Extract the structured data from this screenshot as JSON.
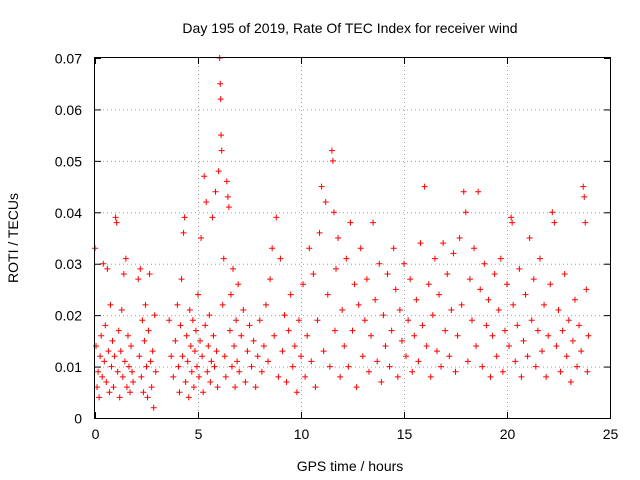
{
  "chart_data": {
    "type": "scatter",
    "title": "Day 195 of 2019, Rate Of TEC Index for receiver wind",
    "xlabel": "GPS time / hours",
    "ylabel": "ROTI / TECUs",
    "xlim": [
      0,
      25
    ],
    "ylim": [
      0,
      0.07
    ],
    "x_ticks": [
      0,
      5,
      10,
      15,
      20,
      25
    ],
    "x_tick_labels": [
      "0",
      "5",
      "10",
      "15",
      "20",
      "25"
    ],
    "y_ticks": [
      0,
      0.01,
      0.02,
      0.03,
      0.04,
      0.05,
      0.06,
      0.07
    ],
    "y_tick_labels": [
      "0",
      "0.01",
      "0.02",
      "0.03",
      "0.04",
      "0.05",
      "0.06",
      "0.07"
    ],
    "grid": true,
    "marker": "plus",
    "series": [
      {
        "name": "ROTI",
        "color": "#ff0000",
        "points": [
          [
            0.0,
            0.033
          ],
          [
            0.05,
            0.014
          ],
          [
            0.1,
            0.006
          ],
          [
            0.15,
            0.009
          ],
          [
            0.2,
            0.004
          ],
          [
            0.25,
            0.012
          ],
          [
            0.3,
            0.016
          ],
          [
            0.35,
            0.008
          ],
          [
            0.4,
            0.03
          ],
          [
            0.45,
            0.011
          ],
          [
            0.5,
            0.018
          ],
          [
            0.55,
            0.007
          ],
          [
            0.6,
            0.029
          ],
          [
            0.65,
            0.013
          ],
          [
            0.7,
            0.005
          ],
          [
            0.75,
            0.022
          ],
          [
            0.8,
            0.01
          ],
          [
            0.85,
            0.015
          ],
          [
            0.9,
            0.006
          ],
          [
            0.95,
            0.012
          ],
          [
            1.0,
            0.039
          ],
          [
            1.05,
            0.038
          ],
          [
            1.1,
            0.009
          ],
          [
            1.15,
            0.017
          ],
          [
            1.2,
            0.004
          ],
          [
            1.25,
            0.013
          ],
          [
            1.3,
            0.021
          ],
          [
            1.35,
            0.008
          ],
          [
            1.4,
            0.028
          ],
          [
            1.45,
            0.011
          ],
          [
            1.5,
            0.031
          ],
          [
            1.55,
            0.006
          ],
          [
            1.6,
            0.016
          ],
          [
            1.65,
            0.01
          ],
          [
            1.7,
            0.005
          ],
          [
            1.75,
            0.014
          ],
          [
            1.8,
            0.009
          ],
          [
            1.85,
            0.007
          ],
          [
            2.1,
            0.027
          ],
          [
            2.15,
            0.012
          ],
          [
            2.2,
            0.029
          ],
          [
            2.25,
            0.008
          ],
          [
            2.3,
            0.019
          ],
          [
            2.35,
            0.005
          ],
          [
            2.4,
            0.015
          ],
          [
            2.45,
            0.022
          ],
          [
            2.5,
            0.01
          ],
          [
            2.55,
            0.004
          ],
          [
            2.6,
            0.017
          ],
          [
            2.65,
            0.028
          ],
          [
            2.7,
            0.011
          ],
          [
            2.75,
            0.006
          ],
          [
            2.8,
            0.013
          ],
          [
            2.85,
            0.002
          ],
          [
            2.9,
            0.02
          ],
          [
            2.95,
            0.009
          ],
          [
            3.6,
            0.019
          ],
          [
            3.7,
            0.012
          ],
          [
            3.8,
            0.008
          ],
          [
            3.9,
            0.015
          ],
          [
            4.0,
            0.022
          ],
          [
            4.05,
            0.01
          ],
          [
            4.1,
            0.005
          ],
          [
            4.15,
            0.018
          ],
          [
            4.2,
            0.027
          ],
          [
            4.25,
            0.012
          ],
          [
            4.3,
            0.036
          ],
          [
            4.35,
            0.039
          ],
          [
            4.4,
            0.007
          ],
          [
            4.45,
            0.016
          ],
          [
            4.5,
            0.011
          ],
          [
            4.55,
            0.004
          ],
          [
            4.6,
            0.021
          ],
          [
            4.65,
            0.014
          ],
          [
            4.7,
            0.009
          ],
          [
            4.75,
            0.019
          ],
          [
            4.8,
            0.006
          ],
          [
            4.85,
            0.013
          ],
          [
            4.9,
            0.017
          ],
          [
            4.95,
            0.01
          ],
          [
            5.0,
            0.024
          ],
          [
            5.05,
            0.008
          ],
          [
            5.1,
            0.015
          ],
          [
            5.15,
            0.035
          ],
          [
            5.2,
            0.012
          ],
          [
            5.25,
            0.005
          ],
          [
            5.3,
            0.047
          ],
          [
            5.35,
            0.018
          ],
          [
            5.4,
            0.042
          ],
          [
            5.45,
            0.009
          ],
          [
            5.5,
            0.014
          ],
          [
            5.55,
            0.02
          ],
          [
            5.6,
            0.007
          ],
          [
            5.65,
            0.011
          ],
          [
            5.7,
            0.039
          ],
          [
            5.75,
            0.016
          ],
          [
            5.8,
            0.01
          ],
          [
            5.85,
            0.044
          ],
          [
            5.9,
            0.013
          ],
          [
            5.95,
            0.006
          ],
          [
            6.0,
            0.048
          ],
          [
            6.05,
            0.07
          ],
          [
            6.08,
            0.065
          ],
          [
            6.1,
            0.062
          ],
          [
            6.12,
            0.055
          ],
          [
            6.15,
            0.052
          ],
          [
            6.2,
            0.022
          ],
          [
            6.25,
            0.031
          ],
          [
            6.3,
            0.012
          ],
          [
            6.35,
            0.008
          ],
          [
            6.4,
            0.046
          ],
          [
            6.45,
            0.043
          ],
          [
            6.5,
            0.041
          ],
          [
            6.55,
            0.017
          ],
          [
            6.6,
            0.024
          ],
          [
            6.65,
            0.01
          ],
          [
            6.7,
            0.029
          ],
          [
            6.75,
            0.014
          ],
          [
            6.8,
            0.006
          ],
          [
            6.85,
            0.019
          ],
          [
            6.9,
            0.011
          ],
          [
            6.95,
            0.026
          ],
          [
            7.0,
            0.009
          ],
          [
            7.1,
            0.016
          ],
          [
            7.2,
            0.021
          ],
          [
            7.3,
            0.007
          ],
          [
            7.4,
            0.013
          ],
          [
            7.5,
            0.018
          ],
          [
            7.6,
            0.01
          ],
          [
            7.7,
            0.015
          ],
          [
            7.8,
            0.006
          ],
          [
            7.9,
            0.012
          ],
          [
            8.0,
            0.019
          ],
          [
            8.1,
            0.009
          ],
          [
            8.2,
            0.014
          ],
          [
            8.3,
            0.022
          ],
          [
            8.4,
            0.011
          ],
          [
            8.5,
            0.027
          ],
          [
            8.6,
            0.033
          ],
          [
            8.7,
            0.016
          ],
          [
            8.8,
            0.039
          ],
          [
            8.9,
            0.008
          ],
          [
            9.0,
            0.031
          ],
          [
            9.1,
            0.013
          ],
          [
            9.2,
            0.02
          ],
          [
            9.3,
            0.007
          ],
          [
            9.4,
            0.017
          ],
          [
            9.5,
            0.024
          ],
          [
            9.6,
            0.01
          ],
          [
            9.7,
            0.014
          ],
          [
            9.8,
            0.005
          ],
          [
            9.9,
            0.019
          ],
          [
            10.0,
            0.012
          ],
          [
            10.1,
            0.026
          ],
          [
            10.2,
            0.008
          ],
          [
            10.3,
            0.016
          ],
          [
            10.4,
            0.033
          ],
          [
            10.5,
            0.011
          ],
          [
            10.6,
            0.028
          ],
          [
            10.7,
            0.006
          ],
          [
            10.8,
            0.019
          ],
          [
            10.9,
            0.036
          ],
          [
            11.0,
            0.045
          ],
          [
            11.1,
            0.013
          ],
          [
            11.2,
            0.042
          ],
          [
            11.3,
            0.024
          ],
          [
            11.4,
            0.01
          ],
          [
            11.5,
            0.052
          ],
          [
            11.55,
            0.05
          ],
          [
            11.6,
            0.04
          ],
          [
            11.65,
            0.017
          ],
          [
            11.7,
            0.029
          ],
          [
            11.8,
            0.035
          ],
          [
            11.9,
            0.008
          ],
          [
            12.0,
            0.021
          ],
          [
            12.1,
            0.014
          ],
          [
            12.2,
            0.031
          ],
          [
            12.3,
            0.01
          ],
          [
            12.4,
            0.038
          ],
          [
            12.5,
            0.017
          ],
          [
            12.6,
            0.026
          ],
          [
            12.7,
            0.006
          ],
          [
            12.8,
            0.022
          ],
          [
            12.9,
            0.033
          ],
          [
            13.0,
            0.012
          ],
          [
            13.1,
            0.019
          ],
          [
            13.2,
            0.027
          ],
          [
            13.3,
            0.009
          ],
          [
            13.4,
            0.016
          ],
          [
            13.5,
            0.038
          ],
          [
            13.6,
            0.023
          ],
          [
            13.7,
            0.011
          ],
          [
            13.8,
            0.03
          ],
          [
            13.9,
            0.007
          ],
          [
            14.0,
            0.02
          ],
          [
            14.1,
            0.014
          ],
          [
            14.2,
            0.028
          ],
          [
            14.3,
            0.01
          ],
          [
            14.4,
            0.017
          ],
          [
            14.5,
            0.033
          ],
          [
            14.6,
            0.025
          ],
          [
            14.7,
            0.008
          ],
          [
            14.8,
            0.021
          ],
          [
            14.9,
            0.015
          ],
          [
            15.0,
            0.03
          ],
          [
            15.1,
            0.012
          ],
          [
            15.2,
            0.019
          ],
          [
            15.3,
            0.027
          ],
          [
            15.4,
            0.009
          ],
          [
            15.5,
            0.016
          ],
          [
            15.6,
            0.023
          ],
          [
            15.7,
            0.011
          ],
          [
            15.8,
            0.034
          ],
          [
            15.9,
            0.018
          ],
          [
            16.0,
            0.045
          ],
          [
            16.1,
            0.014
          ],
          [
            16.2,
            0.026
          ],
          [
            16.3,
            0.008
          ],
          [
            16.4,
            0.02
          ],
          [
            16.5,
            0.031
          ],
          [
            16.6,
            0.013
          ],
          [
            16.7,
            0.024
          ],
          [
            16.8,
            0.01
          ],
          [
            16.9,
            0.034
          ],
          [
            17.0,
            0.017
          ],
          [
            17.1,
            0.028
          ],
          [
            17.2,
            0.012
          ],
          [
            17.3,
            0.021
          ],
          [
            17.4,
            0.032
          ],
          [
            17.5,
            0.009
          ],
          [
            17.6,
            0.016
          ],
          [
            17.7,
            0.035
          ],
          [
            17.8,
            0.022
          ],
          [
            17.9,
            0.044
          ],
          [
            18.0,
            0.04
          ],
          [
            18.1,
            0.011
          ],
          [
            18.2,
            0.027
          ],
          [
            18.3,
            0.019
          ],
          [
            18.4,
            0.033
          ],
          [
            18.5,
            0.014
          ],
          [
            18.6,
            0.044
          ],
          [
            18.7,
            0.025
          ],
          [
            18.8,
            0.01
          ],
          [
            18.9,
            0.03
          ],
          [
            19.0,
            0.018
          ],
          [
            19.1,
            0.023
          ],
          [
            19.2,
            0.008
          ],
          [
            19.3,
            0.016
          ],
          [
            19.4,
            0.028
          ],
          [
            19.5,
            0.012
          ],
          [
            19.6,
            0.021
          ],
          [
            19.7,
            0.031
          ],
          [
            19.8,
            0.009
          ],
          [
            19.9,
            0.017
          ],
          [
            20.0,
            0.026
          ],
          [
            20.1,
            0.014
          ],
          [
            20.2,
            0.039
          ],
          [
            20.25,
            0.038
          ],
          [
            20.3,
            0.022
          ],
          [
            20.4,
            0.011
          ],
          [
            20.5,
            0.018
          ],
          [
            20.6,
            0.029
          ],
          [
            20.7,
            0.008
          ],
          [
            20.8,
            0.015
          ],
          [
            20.9,
            0.024
          ],
          [
            21.0,
            0.012
          ],
          [
            21.1,
            0.035
          ],
          [
            21.2,
            0.019
          ],
          [
            21.3,
            0.027
          ],
          [
            21.4,
            0.01
          ],
          [
            21.5,
            0.017
          ],
          [
            21.6,
            0.031
          ],
          [
            21.7,
            0.013
          ],
          [
            21.8,
            0.022
          ],
          [
            21.9,
            0.008
          ],
          [
            22.0,
            0.016
          ],
          [
            22.1,
            0.026
          ],
          [
            22.2,
            0.04
          ],
          [
            22.3,
            0.038
          ],
          [
            22.4,
            0.014
          ],
          [
            22.5,
            0.021
          ],
          [
            22.6,
            0.009
          ],
          [
            22.7,
            0.017
          ],
          [
            22.8,
            0.028
          ],
          [
            22.9,
            0.012
          ],
          [
            23.0,
            0.019
          ],
          [
            23.1,
            0.007
          ],
          [
            23.2,
            0.015
          ],
          [
            23.3,
            0.023
          ],
          [
            23.4,
            0.01
          ],
          [
            23.5,
            0.018
          ],
          [
            23.6,
            0.013
          ],
          [
            23.7,
            0.045
          ],
          [
            23.75,
            0.043
          ],
          [
            23.8,
            0.038
          ],
          [
            23.85,
            0.025
          ],
          [
            23.9,
            0.009
          ],
          [
            23.95,
            0.016
          ]
        ]
      }
    ]
  }
}
